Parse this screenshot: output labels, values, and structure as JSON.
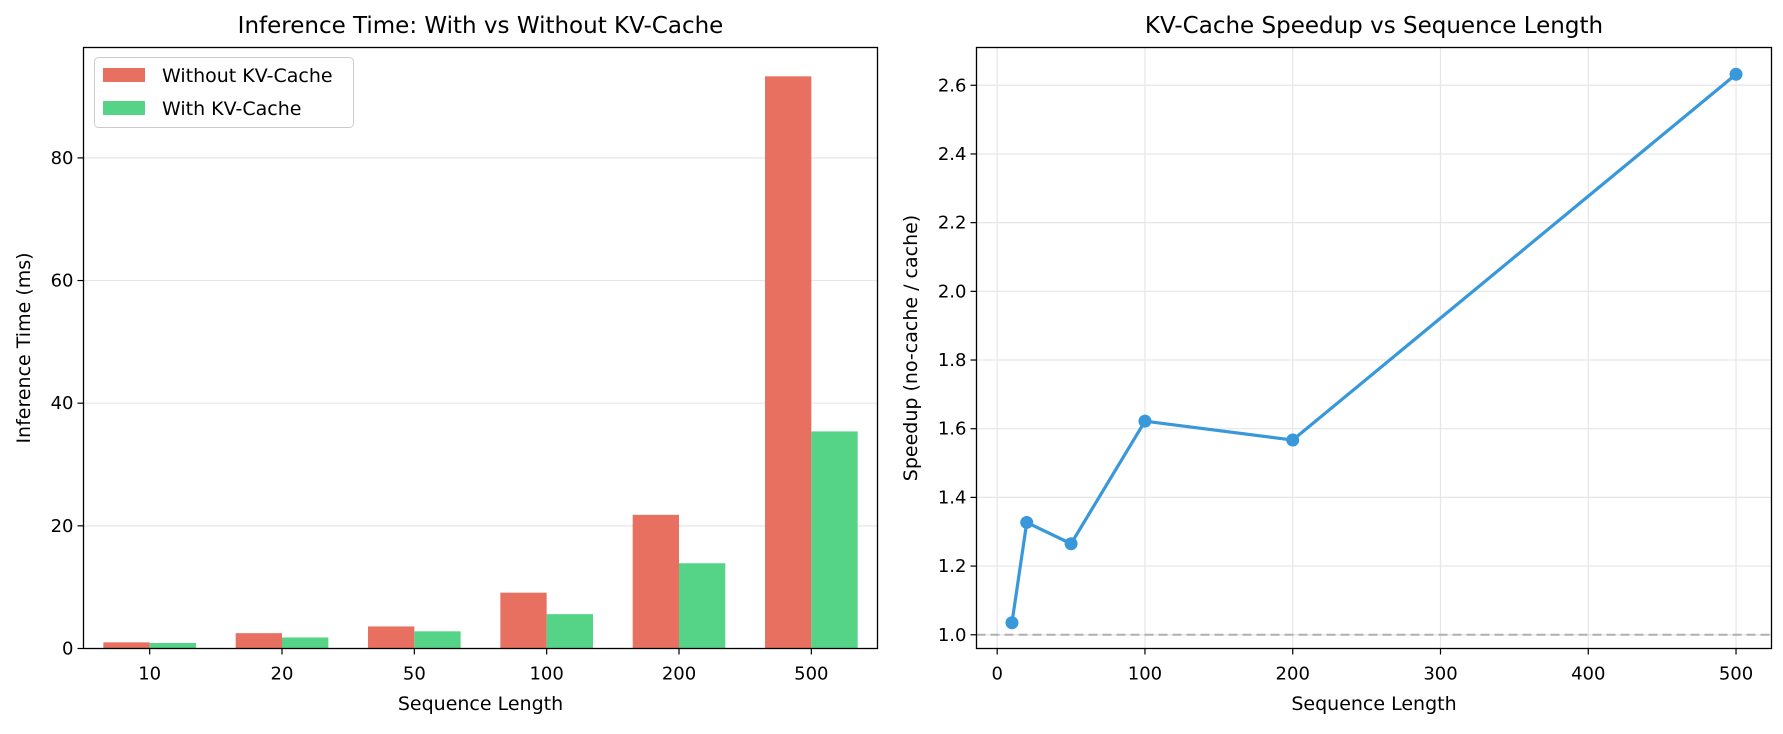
{
  "chart_data": [
    {
      "type": "bar",
      "title": "Inference Time: With vs Without KV-Cache",
      "xlabel": "Sequence Length",
      "ylabel": "Inference Time (ms)",
      "categories": [
        "10",
        "20",
        "50",
        "100",
        "200",
        "500"
      ],
      "series": [
        {
          "name": "Without KV-Cache",
          "color": "#e87060",
          "values": [
            1.0,
            2.5,
            3.6,
            9.1,
            21.8,
            93.3
          ]
        },
        {
          "name": "With KV-Cache",
          "color": "#55d488",
          "values": [
            0.9,
            1.8,
            2.8,
            5.6,
            13.9,
            35.4
          ]
        }
      ],
      "ylim": [
        0,
        98
      ],
      "yticks": [
        0,
        20,
        40,
        60,
        80
      ],
      "grid": "y",
      "legend": "top-left"
    },
    {
      "type": "line",
      "title": "KV-Cache Speedup vs Sequence Length",
      "xlabel": "Sequence Length",
      "ylabel": "Speedup (no-cache / cache)",
      "x": [
        10,
        20,
        50,
        100,
        200,
        500
      ],
      "y": [
        1.035,
        1.327,
        1.265,
        1.622,
        1.567,
        2.632
      ],
      "color": "#3898da",
      "xlim": [
        -14,
        524
      ],
      "ylim": [
        0.96,
        2.71
      ],
      "xticks": [
        0,
        100,
        200,
        300,
        400,
        500
      ],
      "yticks": [
        1.0,
        1.2,
        1.4,
        1.6,
        1.8,
        2.0,
        2.2,
        2.4,
        2.6
      ],
      "reference_line": {
        "y": 1.0,
        "style": "dashed",
        "color": "#b0b0b0"
      },
      "grid": "both"
    }
  ]
}
